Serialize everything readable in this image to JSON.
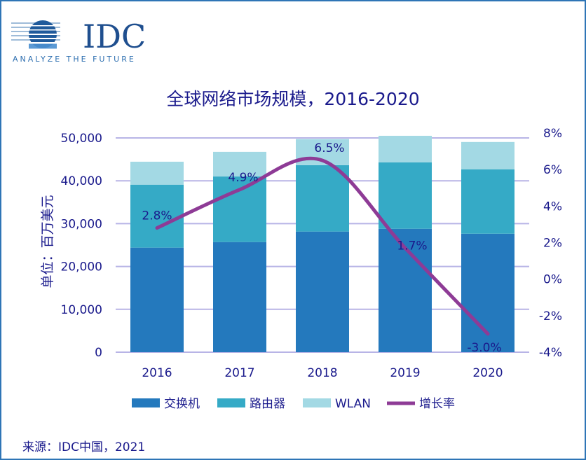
{
  "logo": {
    "text": "IDC",
    "tagline": "ANALYZE THE FUTURE"
  },
  "source": "来源：IDC中国，2021",
  "colors": {
    "switch": "#2479BD",
    "router": "#35AAC6",
    "wlan": "#A3D9E4",
    "growth": "#8E3B96",
    "text": "#1a1a8c",
    "grid": "#B8B4E6",
    "frame": "#2E75B6"
  },
  "chart_data": {
    "type": "bar",
    "stacked": true,
    "title": "全球网络市场规模，2016-2020",
    "ylabel": "单位：百万美元",
    "xlabel": "",
    "categories": [
      "2016",
      "2017",
      "2018",
      "2019",
      "2020"
    ],
    "ylim": [
      0,
      50000
    ],
    "yticks": [
      "0",
      "10,000",
      "20,000",
      "30,000",
      "40,000",
      "50,000"
    ],
    "y2lim": [
      -4,
      8
    ],
    "y2ticks": [
      "-4%",
      "-2%",
      "0%",
      "2%",
      "4%",
      "6%",
      "8%"
    ],
    "grid": true,
    "legend": "bottom",
    "series": [
      {
        "name": "交换机",
        "type": "bar",
        "values": [
          24400,
          25700,
          28150,
          28800,
          27650
        ]
      },
      {
        "name": "路由器",
        "type": "bar",
        "values": [
          14700,
          15300,
          15500,
          15500,
          15000
        ]
      },
      {
        "name": "WLAN",
        "type": "bar",
        "values": [
          5350,
          5750,
          6100,
          6200,
          6400
        ]
      },
      {
        "name": "增长率",
        "type": "line",
        "axis": "right",
        "values": [
          2.8,
          4.9,
          6.5,
          1.7,
          -3.0
        ],
        "labels": [
          "2.8%",
          "4.9%",
          "6.5%",
          "1.7%",
          "-3.0%"
        ]
      }
    ]
  }
}
